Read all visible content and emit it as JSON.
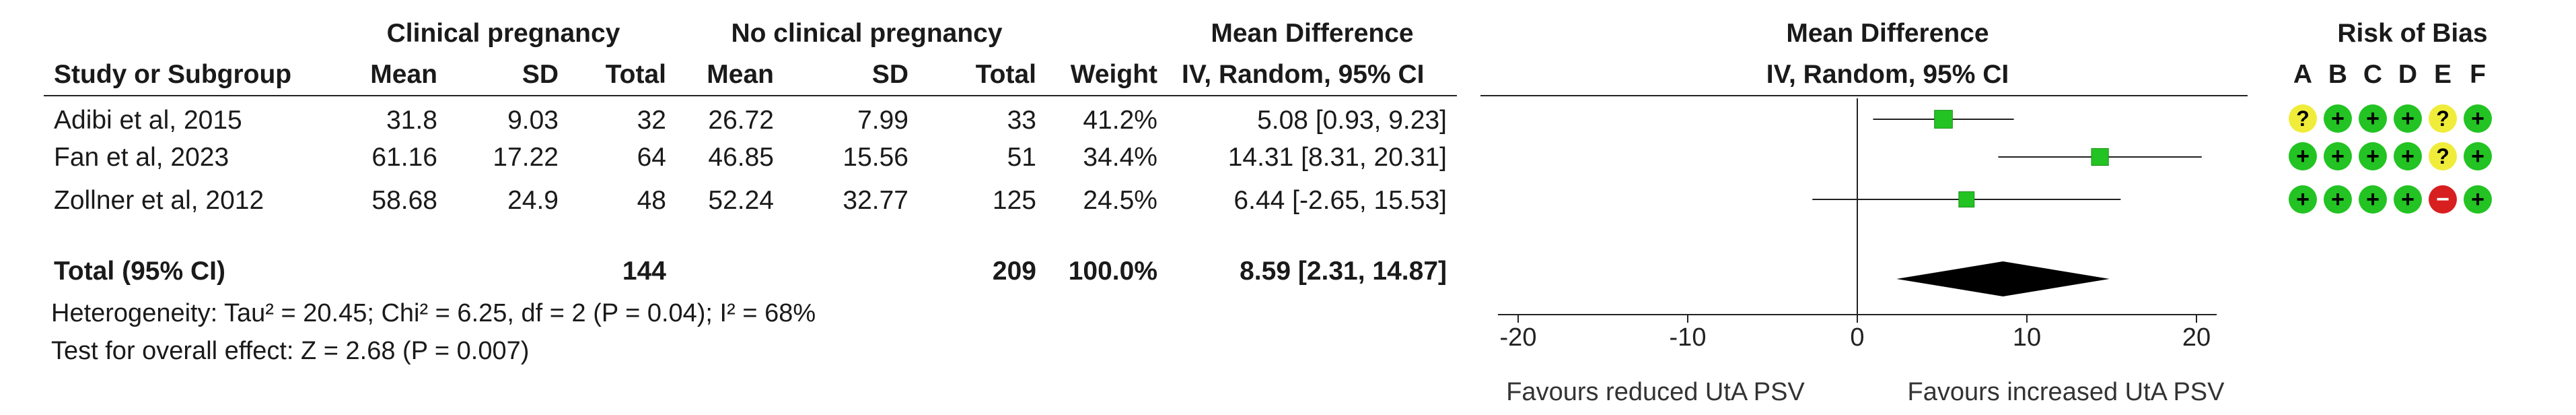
{
  "headers": {
    "group1": "Clinical pregnancy",
    "group2": "No clinical pregnancy",
    "md_title": "Mean Difference",
    "md_method": "IV, Random, 95% CI",
    "plot_title": "Mean Difference",
    "plot_method": "IV, Random, 95% CI",
    "rob_title": "Risk of Bias",
    "study": "Study or Subgroup",
    "mean": "Mean",
    "sd": "SD",
    "total": "Total",
    "weight": "Weight"
  },
  "studies": [
    {
      "name": "Adibi et al, 2015",
      "m1": "31.8",
      "sd1": "9.03",
      "n1": "32",
      "m2": "26.72",
      "sd2": "7.99",
      "n2": "33",
      "weight": "41.2%",
      "ci": "5.08 [0.93, 9.23]"
    },
    {
      "name": "Fan et al, 2023",
      "m1": "61.16",
      "sd1": "17.22",
      "n1": "64",
      "m2": "46.85",
      "sd2": "15.56",
      "n2": "51",
      "weight": "34.4%",
      "ci": "14.31 [8.31, 20.31]"
    },
    {
      "name": "Zollner et al, 2012",
      "m1": "58.68",
      "sd1": "24.9",
      "n1": "48",
      "m2": "52.24",
      "sd2": "32.77",
      "n2": "125",
      "weight": "24.5%",
      "ci": "6.44 [-2.65, 15.53]"
    }
  ],
  "total": {
    "label": "Total (95% CI)",
    "n1": "144",
    "n2": "209",
    "weight": "100.0%",
    "ci": "8.59 [2.31, 14.87]"
  },
  "heterogeneity": "Heterogeneity: Tau² = 20.45; Chi² = 6.25, df = 2 (P = 0.04); I² = 68%",
  "overall_effect": "Test for overall effect: Z = 2.68 (P = 0.007)",
  "axis_labels": {
    "left": "Favours reduced UtA PSV",
    "right": "Favours increased UtA PSV"
  },
  "rob_letters": [
    "A",
    "B",
    "C",
    "D",
    "E",
    "F"
  ],
  "rob_symbols": {
    "low": "+",
    "unclear": "?",
    "high": "−"
  },
  "colors": {
    "low": "#22c322",
    "unclear": "#f0ec3a",
    "high": "#d81f1f",
    "point": "#22c322",
    "diamond": "#000000"
  },
  "chart_data": {
    "type": "forest",
    "xlim": [
      -20,
      20
    ],
    "xticks": [
      -20,
      -10,
      0,
      10,
      20
    ],
    "xtick_labels": [
      "-20",
      "-10",
      "0",
      "10",
      "20"
    ],
    "studies": [
      {
        "est": 5.08,
        "lo": 0.93,
        "hi": 9.23,
        "weight": 41.2
      },
      {
        "est": 14.31,
        "lo": 8.31,
        "hi": 20.31,
        "weight": 34.4
      },
      {
        "est": 6.44,
        "lo": -2.65,
        "hi": 15.53,
        "weight": 24.5
      }
    ],
    "pooled": {
      "est": 8.59,
      "lo": 2.31,
      "hi": 14.87
    },
    "risk_of_bias": [
      [
        "unclear",
        "low",
        "low",
        "low",
        "unclear",
        "low"
      ],
      [
        "low",
        "low",
        "low",
        "low",
        "unclear",
        "low"
      ],
      [
        "low",
        "low",
        "low",
        "low",
        "high",
        "low"
      ]
    ]
  }
}
